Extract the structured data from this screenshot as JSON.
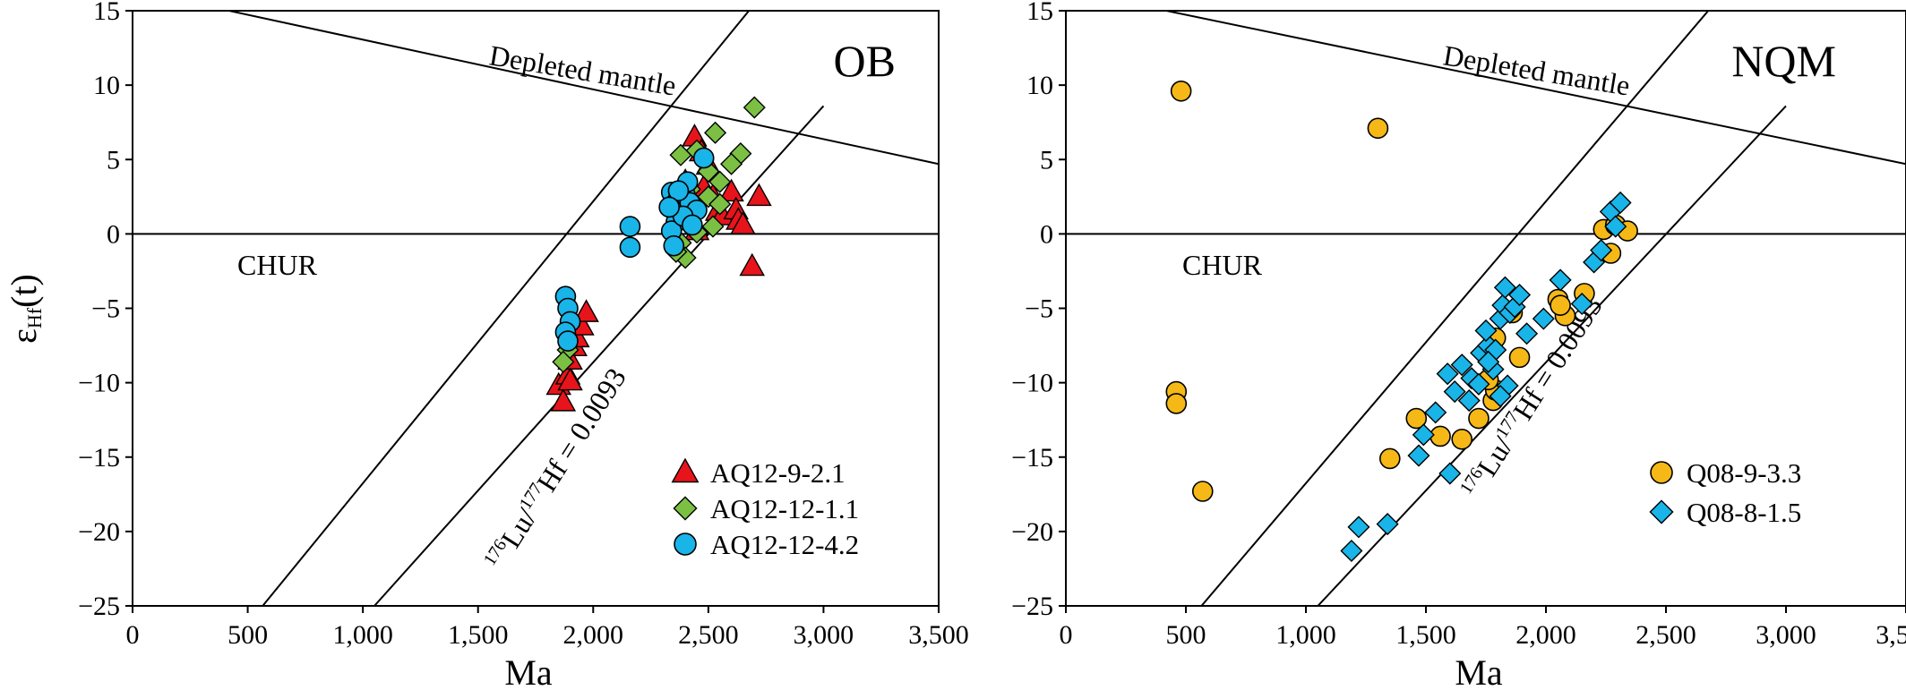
{
  "chart_data": [
    {
      "type": "scatter",
      "panel_label": "OB",
      "xlabel": "Ma",
      "ylabel": "εHf(t)",
      "ylabel_parts": {
        "main": "ε",
        "sub": "Hf",
        "rest": "(t)"
      },
      "xlim": [
        0,
        3500
      ],
      "ylim": [
        -25,
        15
      ],
      "xticks": [
        0,
        500,
        1000,
        1500,
        2000,
        2500,
        3000,
        3500
      ],
      "xtick_labels": [
        "0",
        "500",
        "1,000",
        "1,500",
        "2,000",
        "2,500",
        "3,000",
        "3,500"
      ],
      "yticks": [
        -25,
        -20,
        -15,
        -10,
        -5,
        0,
        5,
        10,
        15
      ],
      "ytick_labels": [
        "−25",
        "−20",
        "−15",
        "−10",
        "−5",
        "0",
        "5",
        "10",
        "15"
      ],
      "legend_position": "bottom-right",
      "reference_lines": [
        {
          "name": "Depleted mantle",
          "points": [
            [
              0,
              16.4
            ],
            [
              3500,
              4.7
            ]
          ]
        },
        {
          "name": "CHUR",
          "points": [
            [
              0,
              0
            ],
            [
              3500,
              0
            ]
          ]
        },
        {
          "name": "crust-left",
          "points": [
            [
              565,
              -25
            ],
            [
              2750,
              16.4
            ]
          ]
        },
        {
          "name": "crust-right",
          "points": [
            [
              1050,
              -25
            ],
            [
              3000,
              8.6
            ]
          ]
        }
      ],
      "annotations": {
        "depleted_mantle": "Depleted mantle",
        "chur": "CHUR",
        "ratio_prefix_sup1": "176",
        "ratio_lu": "Lu/",
        "ratio_sup2": "177",
        "ratio_rest": "Hf = 0.0093"
      },
      "series": [
        {
          "name": "AQ12-9-2.1",
          "marker": "triangle",
          "color": "#e8141b",
          "points": [
            [
              1850,
              -10.2
            ],
            [
              1870,
              -11.3
            ],
            [
              1890,
              -9.5
            ],
            [
              1900,
              -8.5
            ],
            [
              1920,
              -7.6
            ],
            [
              1930,
              -7.0
            ],
            [
              1950,
              -6.2
            ],
            [
              1970,
              -5.3
            ],
            [
              1900,
              -9.9
            ],
            [
              2440,
              6.5
            ],
            [
              2470,
              5.5
            ],
            [
              2500,
              4.6
            ],
            [
              2480,
              3.1
            ],
            [
              2520,
              2.5
            ],
            [
              2540,
              1.5
            ],
            [
              2560,
              1.2
            ],
            [
              2600,
              2.8
            ],
            [
              2620,
              1.6
            ],
            [
              2630,
              0.9
            ],
            [
              2650,
              0.6
            ],
            [
              2720,
              2.5
            ],
            [
              2690,
              -2.2
            ],
            [
              2420,
              1.0
            ],
            [
              2450,
              0.2
            ],
            [
              2360,
              2.0
            ],
            [
              2400,
              3.5
            ]
          ]
        },
        {
          "name": "AQ12-12-1.1",
          "marker": "diamond",
          "color": "#7bc043",
          "points": [
            [
              2700,
              8.5
            ],
            [
              2530,
              6.8
            ],
            [
              2640,
              5.4
            ],
            [
              2380,
              5.3
            ],
            [
              2450,
              5.6
            ],
            [
              2600,
              4.7
            ],
            [
              2500,
              4.2
            ],
            [
              2550,
              3.5
            ],
            [
              2420,
              3.0
            ],
            [
              2500,
              2.5
            ],
            [
              2550,
              2.0
            ],
            [
              2430,
              1.2
            ],
            [
              2450,
              0.1
            ],
            [
              2380,
              -0.6
            ],
            [
              2400,
              -1.6
            ],
            [
              2360,
              -1.2
            ],
            [
              1890,
              -7.8
            ],
            [
              1870,
              -8.6
            ],
            [
              2520,
              0.5
            ]
          ]
        },
        {
          "name": "AQ12-12-4.2",
          "marker": "circle",
          "color": "#19b4e8",
          "points": [
            [
              1880,
              -4.2
            ],
            [
              1890,
              -5.0
            ],
            [
              1900,
              -5.9
            ],
            [
              1880,
              -6.6
            ],
            [
              1890,
              -7.2
            ],
            [
              2160,
              0.5
            ],
            [
              2160,
              -0.9
            ],
            [
              2340,
              2.8
            ],
            [
              2360,
              2.1
            ],
            [
              2380,
              1.6
            ],
            [
              2360,
              0.8
            ],
            [
              2340,
              0.2
            ],
            [
              2350,
              -0.8
            ],
            [
              2400,
              2.6
            ],
            [
              2410,
              3.5
            ],
            [
              2420,
              2.1
            ],
            [
              2450,
              1.6
            ],
            [
              2480,
              5.1
            ],
            [
              2390,
              1.2
            ],
            [
              2370,
              2.9
            ],
            [
              2330,
              1.8
            ],
            [
              2430,
              0.6
            ]
          ]
        }
      ]
    },
    {
      "type": "scatter",
      "panel_label": "NQM",
      "xlabel": "Ma",
      "xlim": [
        0,
        3500
      ],
      "ylim": [
        -25,
        15
      ],
      "xticks": [
        0,
        500,
        1000,
        1500,
        2000,
        2500,
        3000,
        3500
      ],
      "xtick_labels": [
        "0",
        "500",
        "1,000",
        "1,500",
        "2,000",
        "2,500",
        "3,000",
        "3,500"
      ],
      "yticks": [
        -25,
        -20,
        -15,
        -10,
        -5,
        0,
        5,
        10,
        15
      ],
      "ytick_labels": [
        "−25",
        "−20",
        "−15",
        "−10",
        "−5",
        "0",
        "5",
        "10",
        "15"
      ],
      "legend_position": "bottom-right",
      "reference_lines": [
        {
          "name": "Depleted mantle",
          "points": [
            [
              0,
              16.4
            ],
            [
              3500,
              4.7
            ]
          ]
        },
        {
          "name": "CHUR",
          "points": [
            [
              0,
              0
            ],
            [
              3500,
              0
            ]
          ]
        },
        {
          "name": "crust-left",
          "points": [
            [
              565,
              -25
            ],
            [
              2750,
              16.4
            ]
          ]
        },
        {
          "name": "crust-right",
          "points": [
            [
              1050,
              -25
            ],
            [
              3000,
              8.6
            ]
          ]
        }
      ],
      "annotations": {
        "depleted_mantle": "Depleted mantle",
        "chur": "CHUR",
        "ratio_prefix_sup1": "176",
        "ratio_lu": "Lu/",
        "ratio_sup2": "177",
        "ratio_rest": "Hf = 0.0093"
      },
      "series": [
        {
          "name": "Q08-9-3.3",
          "marker": "circle",
          "color": "#f5b816",
          "points": [
            [
              480,
              9.6
            ],
            [
              1300,
              7.1
            ],
            [
              460,
              -10.6
            ],
            [
              460,
              -11.4
            ],
            [
              570,
              -17.3
            ],
            [
              1350,
              -15.1
            ],
            [
              1460,
              -12.4
            ],
            [
              1560,
              -13.6
            ],
            [
              1650,
              -13.8
            ],
            [
              1720,
              -12.4
            ],
            [
              1780,
              -11.2
            ],
            [
              1790,
              -10.5
            ],
            [
              1790,
              -7.0
            ],
            [
              1860,
              -5.3
            ],
            [
              1890,
              -8.3
            ],
            [
              2050,
              -4.4
            ],
            [
              2080,
              -5.5
            ],
            [
              2160,
              -4.0
            ],
            [
              2240,
              0.3
            ],
            [
              2270,
              -1.3
            ],
            [
              2290,
              0.6
            ],
            [
              2340,
              0.2
            ],
            [
              2060,
              -4.8
            ],
            [
              1760,
              -9.8
            ]
          ]
        },
        {
          "name": "Q08-8-1.5",
          "marker": "diamond",
          "color": "#19b4e8",
          "points": [
            [
              1190,
              -21.3
            ],
            [
              1220,
              -19.7
            ],
            [
              1340,
              -19.5
            ],
            [
              1470,
              -14.9
            ],
            [
              1490,
              -13.5
            ],
            [
              1540,
              -12.0
            ],
            [
              1600,
              -16.1
            ],
            [
              1590,
              -9.4
            ],
            [
              1620,
              -10.6
            ],
            [
              1650,
              -8.8
            ],
            [
              1680,
              -11.2
            ],
            [
              1690,
              -9.7
            ],
            [
              1720,
              -10.1
            ],
            [
              1730,
              -8.0
            ],
            [
              1760,
              -7.5
            ],
            [
              1750,
              -6.5
            ],
            [
              1780,
              -9.1
            ],
            [
              1790,
              -7.8
            ],
            [
              1810,
              -5.7
            ],
            [
              1820,
              -4.8
            ],
            [
              1840,
              -10.2
            ],
            [
              1850,
              -5.3
            ],
            [
              1870,
              -4.9
            ],
            [
              1890,
              -4.1
            ],
            [
              1920,
              -6.7
            ],
            [
              1990,
              -5.7
            ],
            [
              2060,
              -3.1
            ],
            [
              2150,
              -4.7
            ],
            [
              2200,
              -1.9
            ],
            [
              2230,
              -1.1
            ],
            [
              2270,
              1.5
            ],
            [
              2310,
              2.1
            ],
            [
              2290,
              0.5
            ],
            [
              1830,
              -3.6
            ],
            [
              1760,
              -8.6
            ],
            [
              1810,
              -10.9
            ]
          ]
        }
      ]
    }
  ]
}
